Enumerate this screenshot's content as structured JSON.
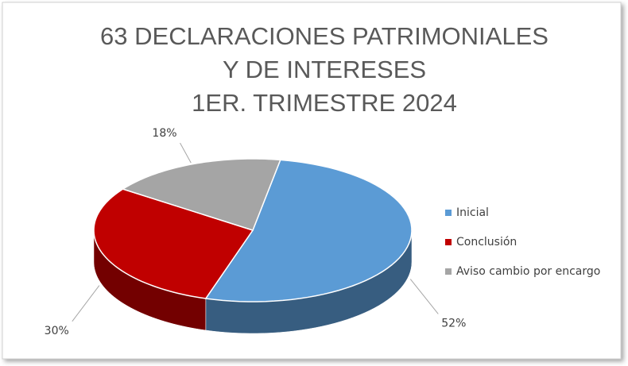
{
  "chart_data": {
    "type": "pie",
    "title": [
      "63 DECLARACIONES PATRIMONIALES",
      "Y DE INTERESES",
      "1ER. TRIMESTRE 2024"
    ],
    "categories": [
      "Inicial",
      "Conclusión",
      "Aviso cambio por encargo"
    ],
    "values": [
      52,
      30,
      18
    ],
    "value_labels": [
      "52%",
      "30%",
      "18%"
    ],
    "colors": [
      "#5b9bd5",
      "#c00000",
      "#a5a5a5"
    ],
    "legend": "right"
  }
}
